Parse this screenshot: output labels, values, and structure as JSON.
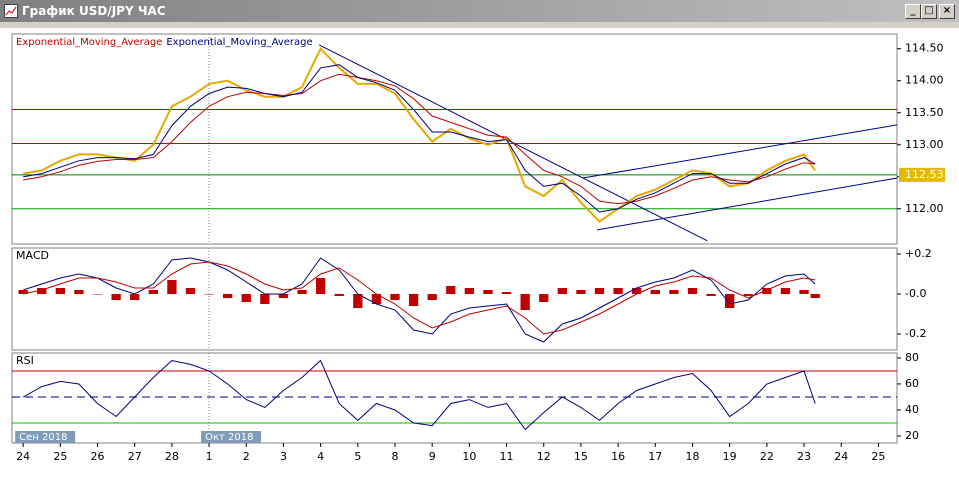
{
  "window": {
    "title": "График USD/JPY ЧАС"
  },
  "chart_data": [
    {
      "type": "line",
      "x": [
        0,
        0.5,
        1,
        1.5,
        2,
        2.5,
        3,
        3.5,
        4,
        4.5,
        5,
        5.5,
        6,
        6.5,
        7,
        7.5,
        8,
        8.5,
        9,
        9.5,
        10,
        10.5,
        11,
        11.5,
        12,
        12.5,
        13,
        13.5,
        14,
        14.5,
        15,
        15.5,
        16,
        16.5,
        17,
        17.5,
        18,
        18.5,
        19,
        19.5,
        20,
        20.5,
        21,
        21.3
      ],
      "xlim": [
        -0.3,
        23.5
      ],
      "xticks": [
        {
          "value": 0,
          "label": "24"
        },
        {
          "value": 1,
          "label": "25"
        },
        {
          "value": 2,
          "label": "26"
        },
        {
          "value": 3,
          "label": "27"
        },
        {
          "value": 4,
          "label": "28"
        },
        {
          "value": 5,
          "label": "1"
        },
        {
          "value": 6,
          "label": "2"
        },
        {
          "value": 7,
          "label": "3"
        },
        {
          "value": 8,
          "label": "4"
        },
        {
          "value": 9,
          "label": "5"
        },
        {
          "value": 10,
          "label": "8"
        },
        {
          "value": 11,
          "label": "9"
        },
        {
          "value": 12,
          "label": "10"
        },
        {
          "value": 13,
          "label": "11"
        },
        {
          "value": 14,
          "label": "12"
        },
        {
          "value": 15,
          "label": "15"
        },
        {
          "value": 16,
          "label": "16"
        },
        {
          "value": 17,
          "label": "17"
        },
        {
          "value": 18,
          "label": "18"
        },
        {
          "value": 19,
          "label": "19"
        },
        {
          "value": 20,
          "label": "22"
        },
        {
          "value": 21,
          "label": "23"
        },
        {
          "value": 22,
          "label": "24"
        },
        {
          "value": 23,
          "label": "25"
        }
      ],
      "period_labels": [
        {
          "value": 0,
          "label": "Сен 2018"
        },
        {
          "value": 5,
          "label": "Окт 2018"
        }
      ],
      "ylim": [
        111.45,
        114.73
      ],
      "yticks": [
        {
          "value": 112,
          "label": "112.00"
        },
        {
          "value": 112.5,
          "label": "112.50"
        },
        {
          "value": 113,
          "label": "113.00"
        },
        {
          "value": 113.5,
          "label": "113.50"
        },
        {
          "value": 114,
          "label": "114.00"
        },
        {
          "value": 114.5,
          "label": "114.50"
        }
      ],
      "last_price": {
        "value": 112.53,
        "label": "112.53"
      },
      "hlines": [
        {
          "value": 113.55,
          "color": "#c00000"
        },
        {
          "value": 113.02,
          "color": "#c00000"
        },
        {
          "value": 112.53,
          "color": "#008000"
        },
        {
          "value": 112.0,
          "color": "#00a000"
        }
      ],
      "trendlines": [
        {
          "x": [
            7.96,
            18.4
          ],
          "y": [
            114.56,
            111.5
          ],
          "color": "#00008b"
        },
        {
          "x": [
            15.05,
            23.5
          ],
          "y": [
            112.48,
            113.31
          ],
          "color": "#00008b"
        },
        {
          "x": [
            15.43,
            23.5
          ],
          "y": [
            111.67,
            112.48
          ],
          "color": "#00008b"
        }
      ],
      "series": [
        {
          "color": "#e8a800",
          "values": [
            112.55,
            112.6,
            112.75,
            112.85,
            112.85,
            112.8,
            112.75,
            113.0,
            113.6,
            113.75,
            113.95,
            114.0,
            113.85,
            113.75,
            113.75,
            113.9,
            114.5,
            114.2,
            113.95,
            113.95,
            113.8,
            113.4,
            113.05,
            113.25,
            113.1,
            113.0,
            113.1,
            112.35,
            112.2,
            112.45,
            112.1,
            111.8,
            112.0,
            112.2,
            112.3,
            112.45,
            112.6,
            112.55,
            112.35,
            112.4,
            112.6,
            112.75,
            112.85,
            112.6
          ]
        },
        {
          "name": "Exponential_Moving_Average",
          "color": "#c00000",
          "values": [
            112.45,
            112.5,
            112.58,
            112.68,
            112.74,
            112.77,
            112.77,
            112.8,
            113.05,
            113.35,
            113.6,
            113.75,
            113.82,
            113.8,
            113.77,
            113.8,
            114.0,
            114.1,
            114.05,
            114.0,
            113.92,
            113.72,
            113.45,
            113.35,
            113.25,
            113.15,
            113.12,
            112.85,
            112.6,
            112.5,
            112.35,
            112.12,
            112.08,
            112.12,
            112.2,
            112.32,
            112.45,
            112.5,
            112.45,
            112.42,
            112.5,
            112.62,
            112.72,
            112.7
          ]
        },
        {
          "name": "Exponential_Moving_Average",
          "color": "#000080",
          "values": [
            112.5,
            112.55,
            112.65,
            112.75,
            112.8,
            112.8,
            112.78,
            112.85,
            113.3,
            113.6,
            113.8,
            113.9,
            113.88,
            113.8,
            113.75,
            113.82,
            114.2,
            114.25,
            114.05,
            113.97,
            113.85,
            113.55,
            113.2,
            113.2,
            113.12,
            113.05,
            113.08,
            112.6,
            112.35,
            112.4,
            112.2,
            111.95,
            112.0,
            112.15,
            112.25,
            112.4,
            112.55,
            112.55,
            112.4,
            112.4,
            112.55,
            112.7,
            112.8,
            112.7
          ]
        }
      ]
    },
    {
      "type": "macd",
      "title": "MACD",
      "ylim": [
        -0.28,
        0.23
      ],
      "yticks": [
        {
          "value": 0.2,
          "label": "+0.2"
        },
        {
          "value": 0,
          "label": "-0.0"
        },
        {
          "value": -0.2,
          "label": "-0.2"
        }
      ],
      "histogram": {
        "color": "#c00000",
        "values": [
          0.02,
          0.03,
          0.03,
          0.02,
          0,
          -0.03,
          -0.03,
          0.02,
          0.07,
          0.03,
          0,
          -0.02,
          -0.04,
          -0.05,
          -0.02,
          0.02,
          0.08,
          -0.01,
          -0.07,
          -0.05,
          -0.03,
          -0.06,
          -0.03,
          0.04,
          0.03,
          0.02,
          0.01,
          -0.08,
          -0.04,
          0.03,
          0.02,
          0.03,
          0.03,
          0.03,
          0.02,
          0.02,
          0.03,
          -0.01,
          -0.07,
          -0.01,
          0.03,
          0.03,
          0.02,
          -0.02
        ]
      },
      "series": [
        {
          "color": "#000080",
          "values": [
            0.02,
            0.05,
            0.08,
            0.1,
            0.08,
            0.03,
            0.0,
            0.05,
            0.17,
            0.18,
            0.16,
            0.12,
            0.06,
            0.0,
            0.0,
            0.05,
            0.18,
            0.12,
            0.0,
            -0.05,
            -0.08,
            -0.18,
            -0.2,
            -0.1,
            -0.07,
            -0.06,
            -0.05,
            -0.2,
            -0.24,
            -0.15,
            -0.12,
            -0.07,
            -0.02,
            0.03,
            0.06,
            0.08,
            0.12,
            0.07,
            -0.05,
            -0.03,
            0.05,
            0.09,
            0.1,
            0.05
          ]
        },
        {
          "color": "#c00000",
          "values": [
            0.0,
            0.02,
            0.05,
            0.08,
            0.08,
            0.06,
            0.03,
            0.03,
            0.1,
            0.15,
            0.16,
            0.14,
            0.1,
            0.05,
            0.02,
            0.03,
            0.1,
            0.13,
            0.07,
            0.0,
            -0.05,
            -0.12,
            -0.17,
            -0.14,
            -0.1,
            -0.08,
            -0.06,
            -0.12,
            -0.2,
            -0.18,
            -0.14,
            -0.1,
            -0.05,
            0.0,
            0.04,
            0.06,
            0.09,
            0.08,
            0.02,
            -0.02,
            0.02,
            0.06,
            0.08,
            0.07
          ]
        }
      ]
    },
    {
      "type": "rsi",
      "title": "RSI",
      "ylim": [
        14.6,
        83.8
      ],
      "yticks": [
        20,
        40,
        60,
        80
      ],
      "hlines": [
        {
          "value": 70,
          "color": "#c00000"
        },
        {
          "value": 50,
          "color": "#000080",
          "dashed": true
        },
        {
          "value": 30,
          "color": "#00c000"
        }
      ],
      "series": [
        {
          "color": "#000080",
          "values": [
            50,
            58,
            62,
            60,
            45,
            35,
            50,
            65,
            78,
            75,
            70,
            60,
            48,
            42,
            55,
            65,
            78,
            45,
            32,
            45,
            40,
            30,
            28,
            45,
            48,
            42,
            45,
            25,
            38,
            50,
            42,
            32,
            45,
            55,
            60,
            65,
            68,
            55,
            35,
            45,
            60,
            65,
            70,
            45
          ]
        }
      ]
    }
  ]
}
